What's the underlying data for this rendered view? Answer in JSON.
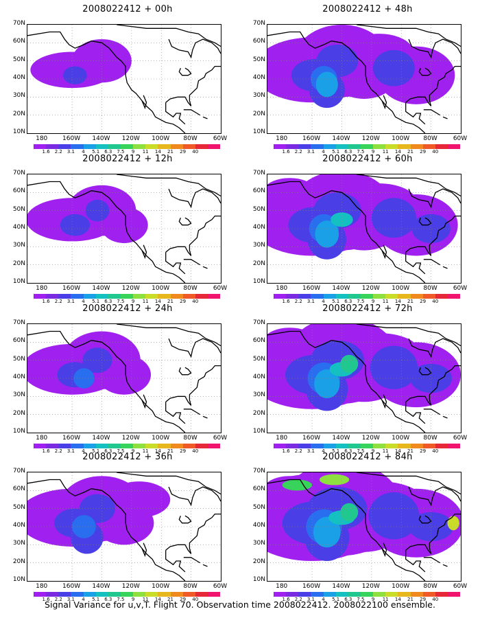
{
  "colors": [
    "#a020f0",
    "#7a2ae0",
    "#4a3ee6",
    "#2a6ef0",
    "#1aa0e6",
    "#14c0c0",
    "#20c890",
    "#38d35a",
    "#8ee040",
    "#c8dc28",
    "#e6b81e",
    "#f08a1e",
    "#f05a28",
    "#e62838",
    "#f0146e"
  ],
  "colorbar_labels": [
    "1.6",
    "2.2",
    "3.1",
    "4",
    "5.1",
    "6.3",
    "7.5",
    "9",
    "11",
    "14",
    "21",
    "29",
    "40"
  ],
  "y_labels": [
    "70N",
    "60N",
    "50N",
    "40N",
    "30N",
    "20N",
    "10N"
  ],
  "x_labels": [
    "180",
    "160W",
    "140W",
    "120W",
    "100W",
    "80W",
    "60W"
  ],
  "panels": [
    {
      "title": "2008022412 + 00h",
      "intensity": 0
    },
    {
      "title": "2008022412 + 12h",
      "intensity": 1
    },
    {
      "title": "2008022412 + 24h",
      "intensity": 2
    },
    {
      "title": "2008022412 + 36h",
      "intensity": 3
    },
    {
      "title": "2008022412 + 48h",
      "intensity": 4
    },
    {
      "title": "2008022412 + 60h",
      "intensity": 5
    },
    {
      "title": "2008022412 + 72h",
      "intensity": 6
    },
    {
      "title": "2008022412 + 84h",
      "intensity": 7
    }
  ],
  "caption": "Signal Variance for u,v,T. Flight 70. Observation time 2008022412. 2008022100 ensemble."
}
